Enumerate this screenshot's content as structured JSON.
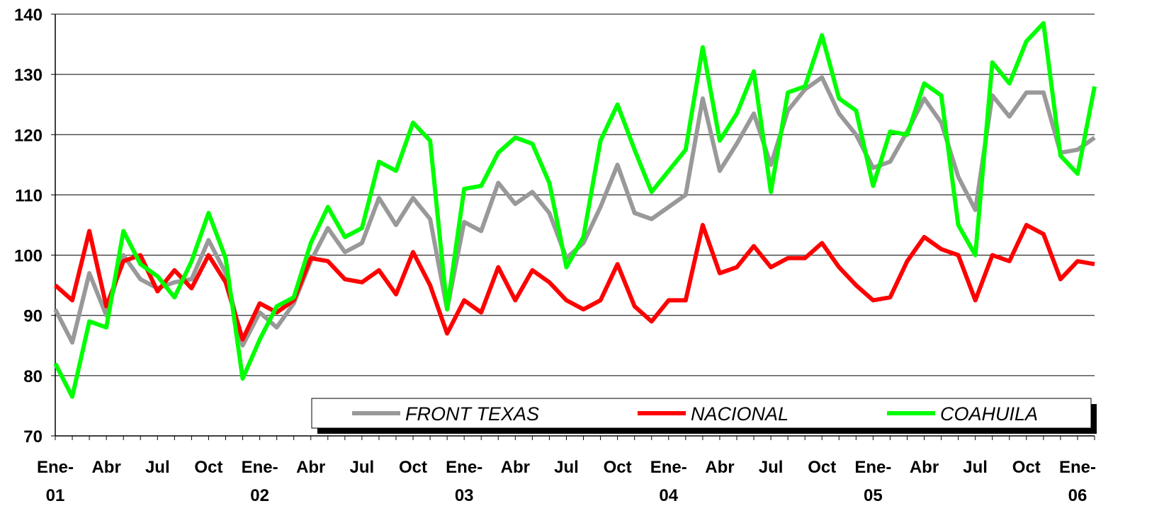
{
  "chart_data": {
    "type": "line",
    "categories": [
      "Ene-01",
      null,
      null,
      "Abr",
      null,
      null,
      "Jul",
      null,
      null,
      "Oct",
      null,
      null,
      "Ene-02",
      null,
      null,
      "Abr",
      null,
      null,
      "Jul",
      null,
      null,
      "Oct",
      null,
      null,
      "Ene-03",
      null,
      null,
      "Abr",
      null,
      null,
      "Jul",
      null,
      null,
      "Oct",
      null,
      null,
      "Ene-04",
      null,
      null,
      "Abr",
      null,
      null,
      "Jul",
      null,
      null,
      "Oct",
      null,
      null,
      "Ene-05",
      null,
      null,
      "Abr",
      null,
      null,
      "Jul",
      null,
      null,
      "Oct",
      null,
      null,
      "Ene-06",
      null
    ],
    "series": [
      {
        "name": "FRONT TEXAS",
        "color": "#999999",
        "values": [
          91,
          85.5,
          97,
          90,
          100,
          96,
          94.5,
          95.5,
          96,
          102.5,
          97,
          85,
          90.5,
          88,
          92,
          99,
          104.5,
          100.5,
          102,
          109.5,
          105,
          109.5,
          106,
          91,
          105.5,
          104,
          112,
          108.5,
          110.5,
          107,
          99.5,
          102,
          108,
          115,
          107,
          106,
          108,
          110,
          126,
          114,
          118.5,
          123.5,
          115,
          124,
          127.5,
          129.5,
          123.5,
          120,
          114.5,
          115.5,
          120.5,
          126,
          122,
          113,
          107.5,
          126.5,
          123,
          127,
          127,
          117,
          117.5,
          119.5
        ]
      },
      {
        "name": "NACIONAL",
        "color": "#ff0000",
        "values": [
          95,
          92.5,
          104,
          91.5,
          99,
          100,
          94,
          97.5,
          94.5,
          100,
          95.5,
          86,
          92,
          90.5,
          92.5,
          99.5,
          99,
          96,
          95.5,
          97.5,
          93.5,
          100.5,
          95,
          87,
          92.5,
          90.5,
          98,
          92.5,
          97.5,
          95.5,
          92.5,
          91,
          92.5,
          98.5,
          91.5,
          89,
          92.5,
          92.5,
          105,
          97,
          98,
          101.5,
          98,
          99.5,
          99.5,
          102,
          98,
          95,
          92.5,
          93,
          99,
          103,
          101,
          100,
          92.5,
          100,
          99,
          105,
          103.5,
          96,
          99,
          98.5
        ]
      },
      {
        "name": "COAHUILA",
        "color": "#00ff00",
        "values": [
          82,
          76.5,
          89,
          88,
          104,
          98.5,
          96.5,
          93,
          99,
          107,
          99.5,
          79.5,
          86,
          91.5,
          93,
          102,
          108,
          103,
          104.5,
          115.5,
          114,
          122,
          119,
          91,
          111,
          111.5,
          117,
          119.5,
          118.5,
          112,
          98,
          103,
          119,
          125,
          117.5,
          110.5,
          114,
          117.5,
          134.5,
          119,
          123.5,
          130.5,
          110.5,
          127,
          128,
          136.5,
          126,
          124,
          111.5,
          120.5,
          120,
          128.5,
          126.5,
          105,
          100,
          132,
          128.5,
          135.5,
          138.5,
          116.5,
          113.5,
          128
        ]
      }
    ],
    "ylim": [
      70,
      140
    ],
    "yticks": [
      70,
      80,
      90,
      100,
      110,
      120,
      130,
      140
    ],
    "grid": true,
    "legend": "lower right"
  }
}
